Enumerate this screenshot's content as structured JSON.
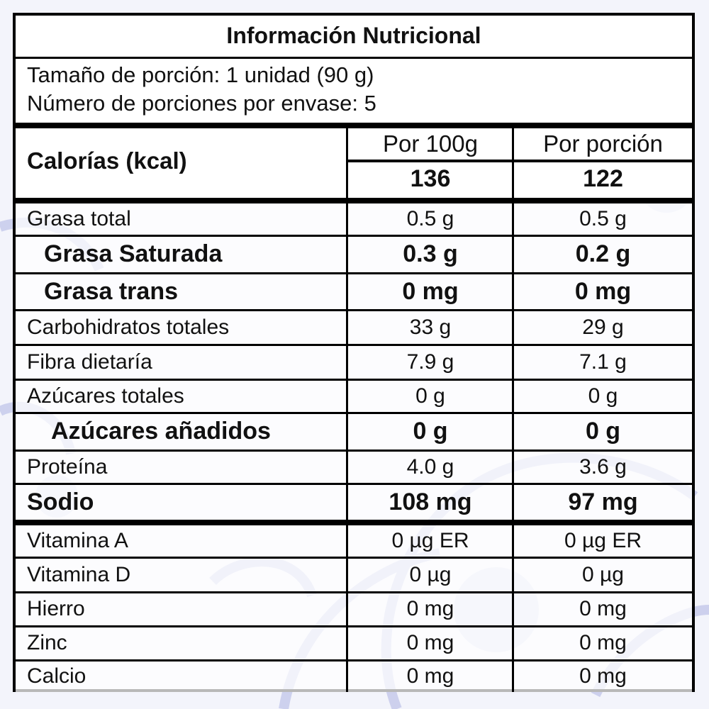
{
  "label": {
    "title": "Información Nutricional",
    "serving_size": "Tamaño de porción: 1 unidad (90 g)",
    "servings_per_container": "Número de porciones por envase: 5",
    "calories_label": "Calorías (kcal)",
    "col_per100_header": "Por 100g",
    "col_perserving_header": "Por porción",
    "calories_per100": "136",
    "calories_perserving": "122",
    "rows": [
      {
        "name": "Grasa total",
        "per100": "0.5 g",
        "perserving": "0.5 g"
      },
      {
        "name": "Grasa Saturada",
        "per100": "0.3 g",
        "perserving": "0.2 g"
      },
      {
        "name": "Grasa trans",
        "per100": "0 mg",
        "perserving": "0 mg"
      },
      {
        "name": "Carbohidratos totales",
        "per100": "33 g",
        "perserving": "29 g"
      },
      {
        "name": "Fibra dietaría",
        "per100": "7.9 g",
        "perserving": "7.1 g"
      },
      {
        "name": "Azúcares totales",
        "per100": "0 g",
        "perserving": "0 g"
      },
      {
        "name": "Azúcares añadidos",
        "per100": "0 g",
        "perserving": "0 g"
      },
      {
        "name": "Proteína",
        "per100": "4.0 g",
        "perserving": "3.6 g"
      },
      {
        "name": "Sodio",
        "per100": "108 mg",
        "perserving": "97 mg"
      },
      {
        "name": "Vitamina A",
        "per100": "0 µg ER",
        "perserving": "0 µg ER"
      },
      {
        "name": "Vitamina D",
        "per100": "0 µg",
        "perserving": "0 µg"
      },
      {
        "name": "Hierro",
        "per100": "0 mg",
        "perserving": "0 mg"
      },
      {
        "name": "Zinc",
        "per100": "0 mg",
        "perserving": "0 mg"
      },
      {
        "name": "Calcio",
        "per100": "0 mg",
        "perserving": "0 mg"
      }
    ]
  },
  "colors": {
    "background": "#f3f4fb",
    "watermark": "#c9cdec",
    "border": "#000000"
  }
}
